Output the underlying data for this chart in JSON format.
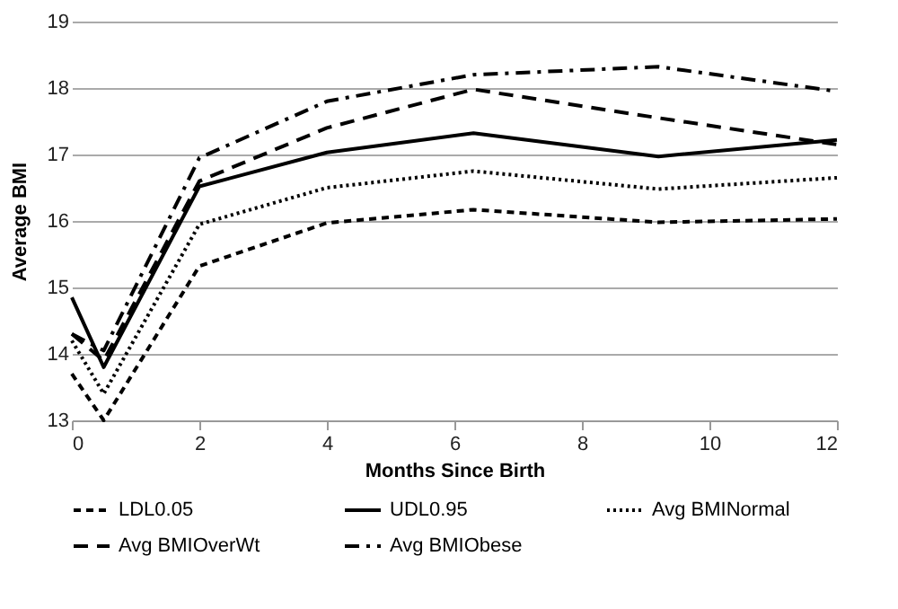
{
  "chart_data": {
    "type": "line",
    "xlabel": "Months Since Birth",
    "ylabel": "Average BMI",
    "x": [
      0,
      0.5,
      2,
      4,
      6.3,
      9.2,
      12
    ],
    "series": [
      {
        "name": "LDL0.05",
        "color": "#000000",
        "line_style": "dashed",
        "values": [
          13.7,
          13.0,
          15.32,
          15.97,
          16.17,
          15.98,
          16.03
        ]
      },
      {
        "name": "UDL0.95",
        "color": "#000000",
        "line_style": "solid",
        "values": [
          14.85,
          13.8,
          16.52,
          17.03,
          17.32,
          16.97,
          17.22
        ]
      },
      {
        "name": "Avg  BMINormal",
        "color": "#000000",
        "line_style": "dotted",
        "values": [
          14.2,
          13.4,
          15.95,
          16.5,
          16.75,
          16.48,
          16.65
        ]
      },
      {
        "name": "Avg  BMIOverWt",
        "color": "#000000",
        "line_style": "longdash",
        "values": [
          14.3,
          13.9,
          16.6,
          17.4,
          17.98,
          17.55,
          17.15
        ]
      },
      {
        "name": "Avg  BMIObese",
        "color": "#000000",
        "line_style": "dashdot",
        "values": [
          14.3,
          14.05,
          16.95,
          17.8,
          18.2,
          18.32,
          17.95
        ]
      }
    ],
    "xlim": [
      0,
      12
    ],
    "xticks": [
      0,
      2,
      4,
      6,
      8,
      10,
      12
    ],
    "ylim": [
      13,
      19
    ],
    "yticks": [
      13,
      14,
      15,
      16,
      17,
      18,
      19
    ],
    "grid": "y",
    "legend": "bottom",
    "marker": "none"
  }
}
